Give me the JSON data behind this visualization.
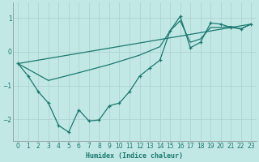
{
  "xlabel": "Humidex (Indice chaleur)",
  "background_color": "#c2e8e5",
  "grid_color": "#aacfcc",
  "line_color": "#1a7870",
  "xlim": [
    -0.5,
    23.5
  ],
  "ylim": [
    -2.65,
    1.45
  ],
  "xticks": [
    0,
    1,
    2,
    3,
    4,
    5,
    6,
    7,
    8,
    9,
    10,
    11,
    12,
    13,
    14,
    15,
    16,
    17,
    18,
    19,
    20,
    21,
    22,
    23
  ],
  "yticks": [
    -2,
    -1,
    0,
    1
  ],
  "curve1_x": [
    0,
    1,
    2,
    3,
    4,
    5,
    6,
    7,
    8,
    9,
    10,
    11,
    12,
    13,
    14,
    15,
    16,
    17,
    18,
    19,
    20,
    21,
    22,
    23
  ],
  "curve1_y": [
    -0.35,
    -0.72,
    -1.18,
    -1.52,
    -2.18,
    -2.38,
    -1.72,
    -2.05,
    -2.02,
    -1.6,
    -1.52,
    -1.18,
    -0.72,
    -0.48,
    -0.25,
    0.62,
    1.05,
    0.12,
    0.28,
    0.85,
    0.82,
    0.72,
    0.68,
    0.82
  ],
  "line2_x": [
    0,
    23
  ],
  "line2_y": [
    -0.35,
    0.82
  ],
  "curve3_x": [
    0,
    3,
    6,
    9,
    12,
    14,
    15,
    16,
    17,
    18,
    19,
    20,
    21,
    22,
    23
  ],
  "curve3_y": [
    -0.35,
    -0.85,
    -0.62,
    -0.38,
    -0.1,
    0.15,
    0.62,
    0.92,
    0.28,
    0.38,
    0.72,
    0.72,
    0.75,
    0.68,
    0.82
  ]
}
